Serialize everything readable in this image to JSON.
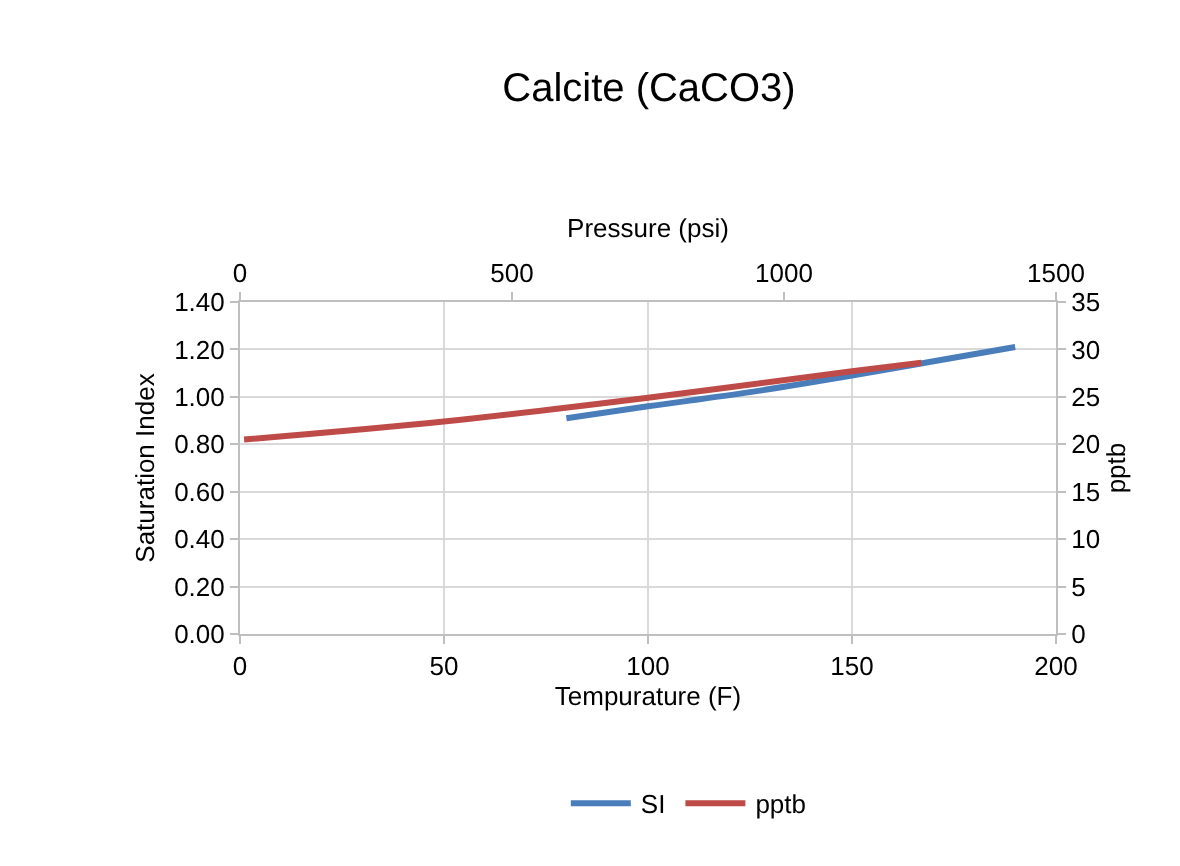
{
  "chart_data": {
    "type": "line",
    "title": "Calcite (CaCO3)",
    "xlabel": "Tempurature (F)",
    "x2label": "Pressure (psi)",
    "ylabel": "Saturation Index",
    "y2label": "pptb",
    "xlim": [
      0,
      200
    ],
    "xticks": [
      0,
      50,
      100,
      150,
      200
    ],
    "x2lim": [
      0,
      1500
    ],
    "x2ticks": [
      0,
      500,
      1000,
      1500
    ],
    "ylim": [
      0,
      1.4
    ],
    "yticks": [
      {
        "value": 0,
        "label": "0.00"
      },
      {
        "value": 0.2,
        "label": "0.20"
      },
      {
        "value": 0.4,
        "label": "0.40"
      },
      {
        "value": 0.6,
        "label": "0.60"
      },
      {
        "value": 0.8,
        "label": "0.80"
      },
      {
        "value": 1.0,
        "label": "1.00"
      },
      {
        "value": 1.2,
        "label": "1.20"
      },
      {
        "value": 1.4,
        "label": "1.40"
      }
    ],
    "y2lim": [
      0,
      35
    ],
    "y2ticks": [
      0,
      5,
      10,
      15,
      20,
      25,
      30,
      35
    ],
    "series": [
      {
        "name": "SI",
        "color": "#4a7ebb",
        "x": [
          80,
          100,
          125,
          150,
          170,
          190
        ],
        "values": [
          0.91,
          0.96,
          1.02,
          1.09,
          1.15,
          1.21
        ]
      },
      {
        "name": "pptb",
        "color": "#be4b48",
        "axis": "y2",
        "x": [
          1,
          50,
          100,
          150,
          167
        ],
        "values": [
          20.5,
          22.4,
          24.9,
          27.7,
          28.6
        ]
      }
    ],
    "grid": true,
    "legend": "bottom",
    "marker": "none",
    "line_style": "solid"
  }
}
